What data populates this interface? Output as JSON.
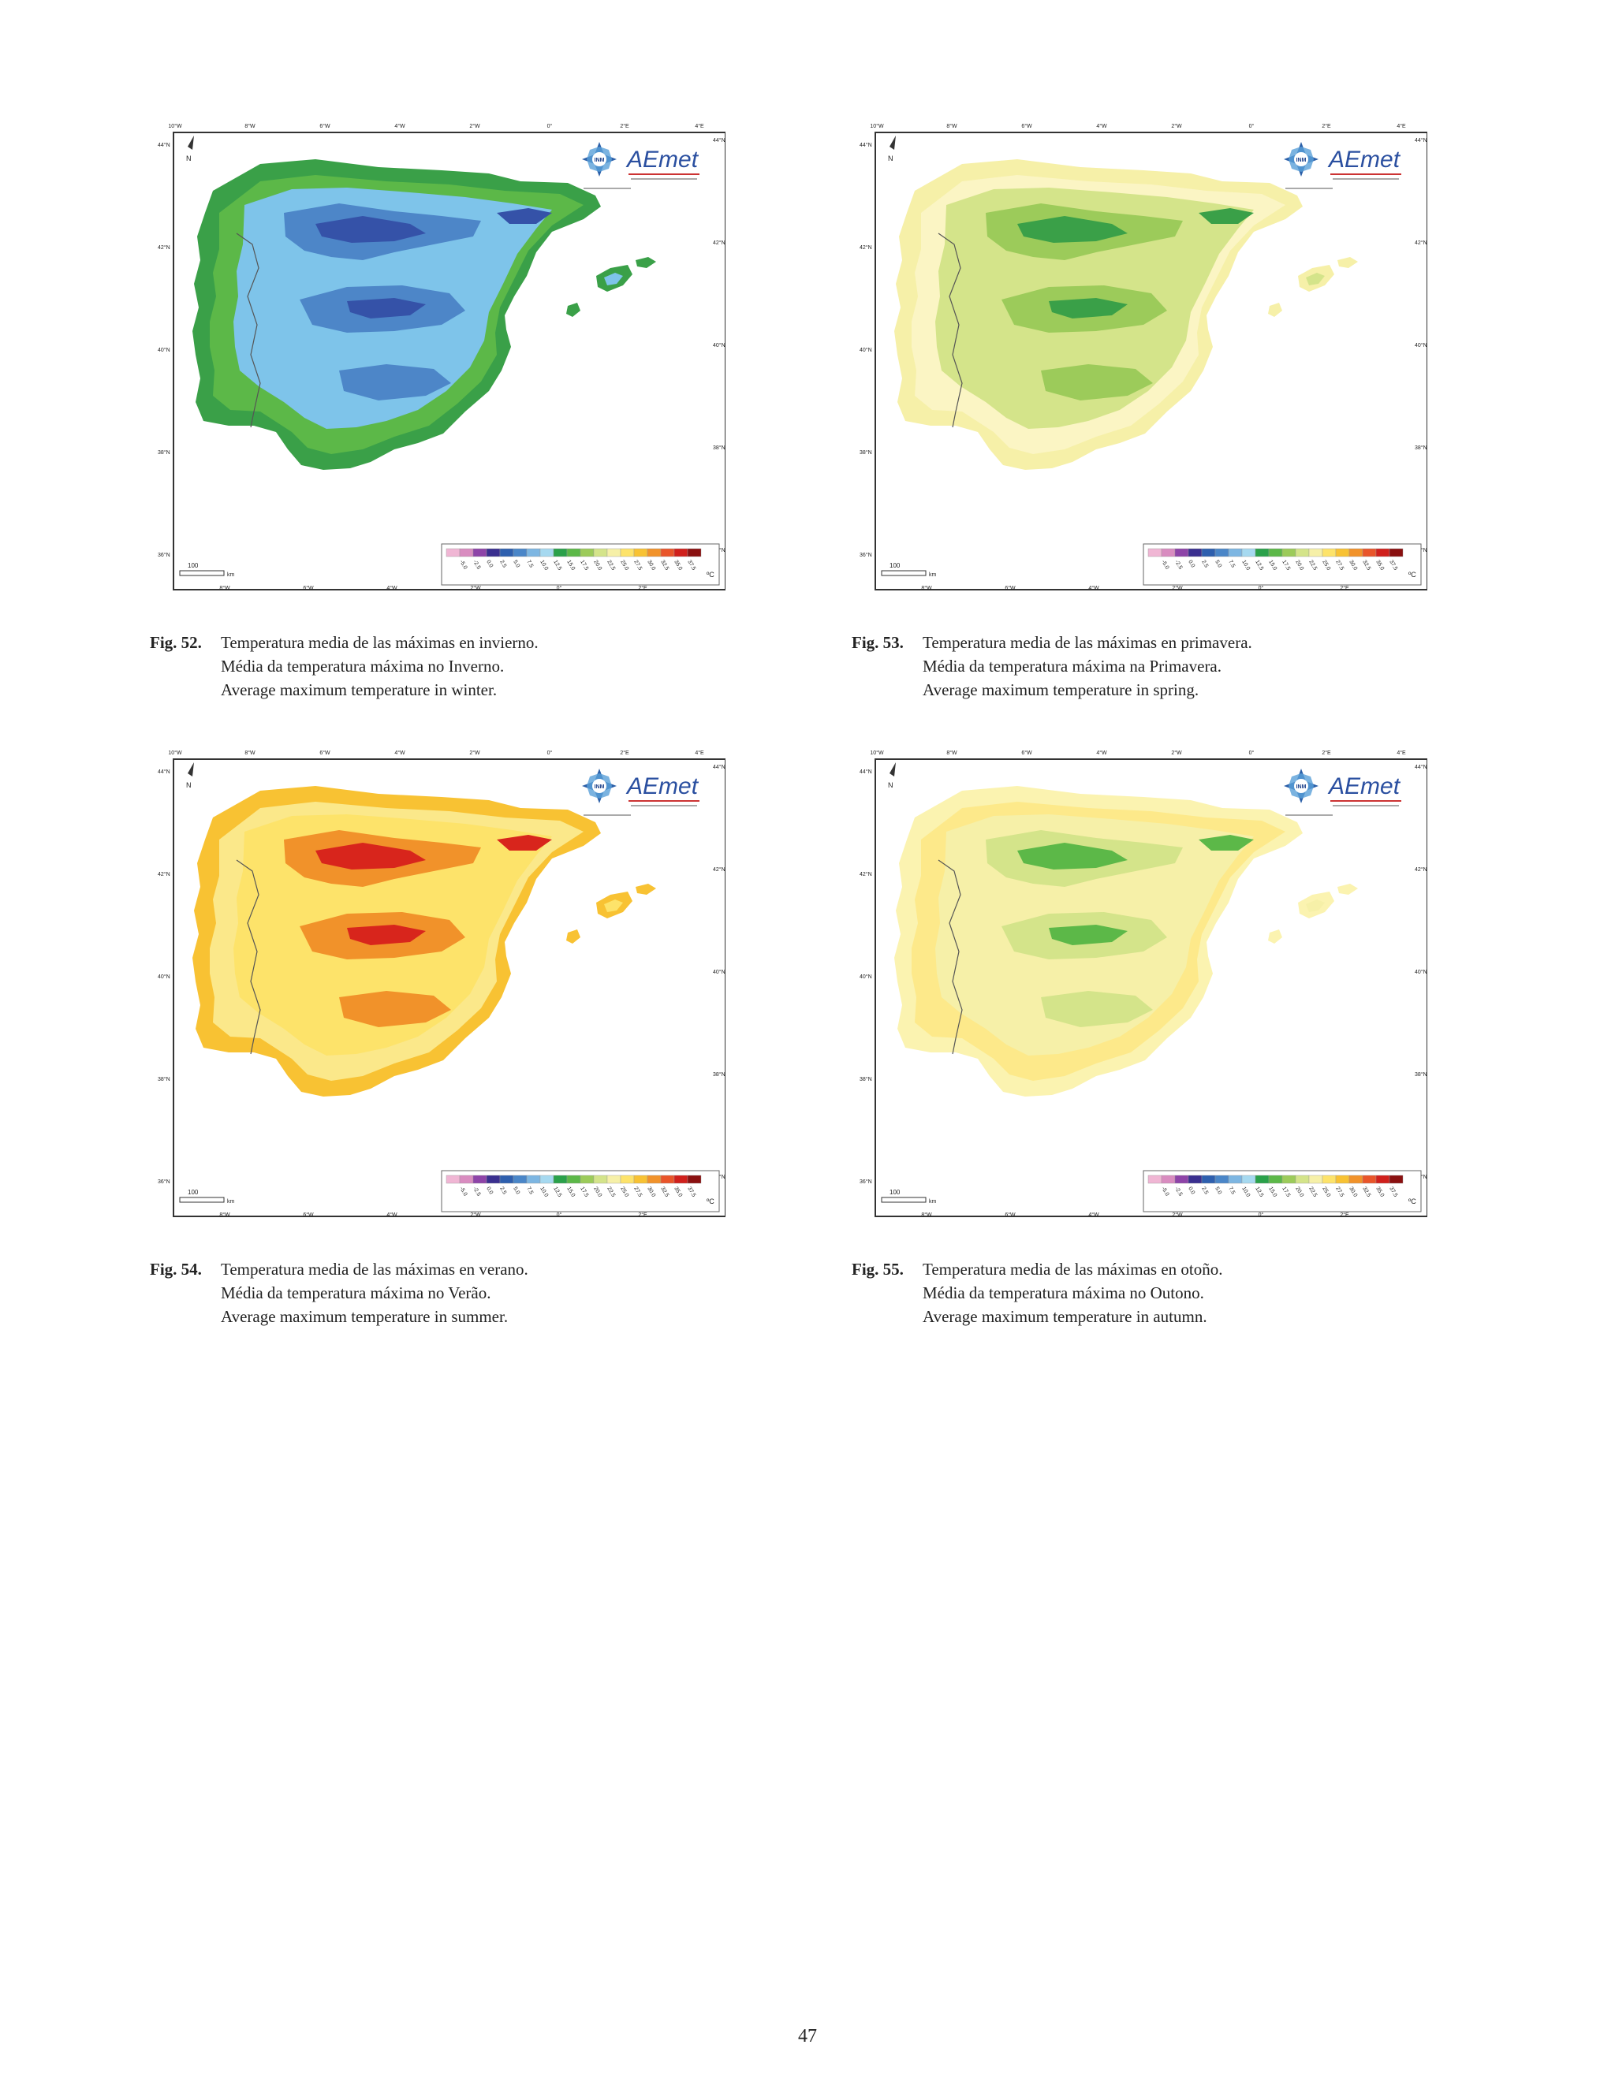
{
  "lon_ticks_top": [
    "10°W",
    "8°W",
    "6°W",
    "4°W",
    "2°W",
    "0°",
    "2°E",
    "4°E"
  ],
  "lon_ticks_bottom": [
    "8°W",
    "6°W",
    "4°W",
    "2°W",
    "0°",
    "2°E"
  ],
  "lat_ticks_left": [
    "44°N",
    "42°N",
    "40°N",
    "38°N",
    "36°N"
  ],
  "lat_ticks_right": [
    "44°N",
    "42°N",
    "40°N",
    "38°N",
    "36°N"
  ],
  "north_label": "N",
  "scale_label": "100",
  "scale_unit": "km",
  "legend_unit": "ºC",
  "legend_values": [
    "-5.0",
    "-2.5",
    "0.0",
    "2.5",
    "5.0",
    "7.5",
    "10.0",
    "12.5",
    "15.0",
    "17.5",
    "20.0",
    "22.5",
    "25.0",
    "27.5",
    "30.0",
    "32.5",
    "35.0",
    "37.5"
  ],
  "legend_colors": [
    "#f0b6d4",
    "#d98cc0",
    "#8e44a8",
    "#3a2f8f",
    "#2e5fae",
    "#4a86c8",
    "#7db6e2",
    "#a6d9f0",
    "#2aa14a",
    "#5cb848",
    "#9ccb5a",
    "#d4e48a",
    "#f6f0a8",
    "#fde36a",
    "#f8c233",
    "#f1922a",
    "#e9552a",
    "#d0201c",
    "#8a1010"
  ],
  "logo_brand": "AEmet",
  "logo_badge": "INM",
  "figures": [
    {
      "number": "Fig. 52",
      "lines": [
        "Temperatura media de las máximas en invierno.",
        "Média da temperatura máxima no Inverno.",
        "Average maximum temperature in winter."
      ],
      "palette": {
        "base": "#7ec4ea",
        "mid": "#4d86c8",
        "dark": "#3552a8",
        "coast": "#3aa048",
        "coast2": "#5cb848"
      }
    },
    {
      "number": "Fig. 53",
      "lines": [
        "Temperatura media de las máximas en primavera.",
        "Média da temperatura máxima na Primavera.",
        "Average maximum temperature in spring."
      ],
      "palette": {
        "base": "#d4e48a",
        "mid": "#9ccb5a",
        "dark": "#3aa048",
        "coast": "#f6f0a8",
        "coast2": "#fbf5c4"
      }
    },
    {
      "number": "Fig. 54",
      "lines": [
        "Temperatura media de las máximas en verano.",
        "Média da temperatura máxima no Verão.",
        "Average maximum temperature in summer."
      ],
      "palette": {
        "base": "#fde36a",
        "mid": "#f1922a",
        "dark": "#d8251c",
        "coast": "#f8c233",
        "coast2": "#fbe88a"
      }
    },
    {
      "number": "Fig. 55",
      "lines": [
        "Temperatura media de las máximas en otoño.",
        "Média da temperatura máxima no Outono.",
        "Average maximum temperature in autumn."
      ],
      "palette": {
        "base": "#f6f0a8",
        "mid": "#d4e48a",
        "dark": "#5cb848",
        "coast": "#fbf3b0",
        "coast2": "#fde98a"
      }
    }
  ],
  "page_number": "47"
}
